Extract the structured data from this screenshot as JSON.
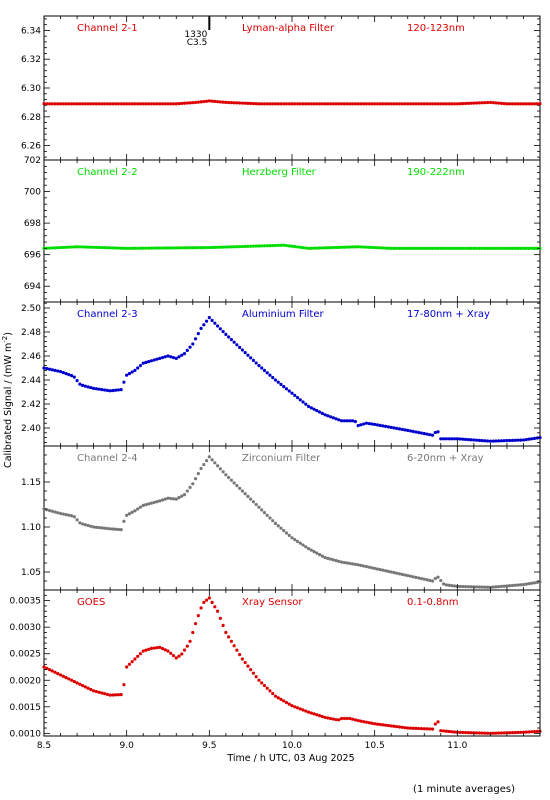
{
  "chart_data": {
    "type": "scatter",
    "xlabel": "Time / h UTC, 03 Aug 2025",
    "ylabel": "Calibrated Signal / (mW m",
    "ylabel_sup": "-2",
    "ylabel_close": ")",
    "footer": "(1 minute averages)",
    "xlim": [
      8.5,
      11.5
    ],
    "xticks": [
      "8.5",
      "9.0",
      "9.5",
      "10.0",
      "10.5",
      "11.0"
    ],
    "xtick_values": [
      8.5,
      9.0,
      9.5,
      10.0,
      10.5,
      11.0
    ],
    "marker_time": 9.5,
    "marker_label_top": "1330",
    "marker_label_bottom": "C3.5",
    "panels": [
      {
        "channel": "Channel 2-1",
        "filter": "Lyman-alpha Filter",
        "band": "120-123nm",
        "color": "#dd0000",
        "ylim": [
          6.25,
          6.35
        ],
        "yticks": [
          "6.26",
          "6.28",
          "6.30",
          "6.32",
          "6.34"
        ],
        "ytick_values": [
          6.26,
          6.28,
          6.3,
          6.32,
          6.34
        ],
        "points": [
          [
            8.5,
            6.289
          ],
          [
            9.3,
            6.289
          ],
          [
            9.42,
            6.29
          ],
          [
            9.5,
            6.291
          ],
          [
            9.6,
            6.29
          ],
          [
            9.8,
            6.289
          ],
          [
            11.0,
            6.289
          ],
          [
            11.2,
            6.29
          ],
          [
            11.3,
            6.289
          ],
          [
            11.5,
            6.289
          ]
        ]
      },
      {
        "channel": "Channel 2-2",
        "filter": "Herzberg Filter",
        "band": "190-222nm",
        "color": "#00dd00",
        "ylim": [
          693.0,
          702.0
        ],
        "yticks": [
          "694",
          "696",
          "698",
          "700",
          "702"
        ],
        "ytick_values": [
          694,
          696,
          698,
          700,
          702
        ],
        "points": [
          [
            8.5,
            696.4
          ],
          [
            8.7,
            696.5
          ],
          [
            9.0,
            696.4
          ],
          [
            9.5,
            696.45
          ],
          [
            9.95,
            696.6
          ],
          [
            10.1,
            696.4
          ],
          [
            10.4,
            696.5
          ],
          [
            10.6,
            696.4
          ],
          [
            11.5,
            696.4
          ]
        ]
      },
      {
        "channel": "Channel 2-3",
        "filter": "Aluminium Filter",
        "band": "17-80nm + Xray",
        "color": "#0000cc",
        "ylim": [
          2.385,
          2.505
        ],
        "yticks": [
          "2.40",
          "2.42",
          "2.44",
          "2.46",
          "2.48",
          "2.50"
        ],
        "ytick_values": [
          2.4,
          2.42,
          2.44,
          2.46,
          2.48,
          2.5
        ],
        "points": [
          [
            8.5,
            2.45
          ],
          [
            8.6,
            2.447
          ],
          [
            8.68,
            2.443
          ],
          [
            8.72,
            2.436
          ],
          [
            8.8,
            2.433
          ],
          [
            8.9,
            2.431
          ],
          [
            8.97,
            2.432
          ],
          [
            8.98,
            2.437
          ],
          [
            9.0,
            2.444
          ],
          [
            9.05,
            2.448
          ],
          [
            9.1,
            2.454
          ],
          [
            9.2,
            2.458
          ],
          [
            9.25,
            2.46
          ],
          [
            9.3,
            2.458
          ],
          [
            9.35,
            2.462
          ],
          [
            9.4,
            2.47
          ],
          [
            9.45,
            2.483
          ],
          [
            9.5,
            2.492
          ],
          [
            9.55,
            2.485
          ],
          [
            9.6,
            2.478
          ],
          [
            9.7,
            2.465
          ],
          [
            9.8,
            2.452
          ],
          [
            9.9,
            2.44
          ],
          [
            10.0,
            2.429
          ],
          [
            10.1,
            2.418
          ],
          [
            10.2,
            2.411
          ],
          [
            10.3,
            2.406
          ],
          [
            10.38,
            2.406
          ],
          [
            10.4,
            2.402
          ],
          [
            10.45,
            2.404
          ],
          [
            10.5,
            2.403
          ],
          [
            10.7,
            2.398
          ],
          [
            10.85,
            2.394
          ],
          [
            10.88,
            2.398
          ],
          [
            10.9,
            2.391
          ],
          [
            11.0,
            2.391
          ],
          [
            11.2,
            2.389
          ],
          [
            11.4,
            2.39
          ],
          [
            11.5,
            2.392
          ]
        ]
      },
      {
        "channel": "Channel 2-4",
        "filter": "Zirconium Filter",
        "band": "6-20nm + Xray",
        "color": "#777777",
        "ylim": [
          1.03,
          1.19
        ],
        "yticks": [
          "1.05",
          "1.10",
          "1.15"
        ],
        "ytick_values": [
          1.05,
          1.1,
          1.15
        ],
        "points": [
          [
            8.5,
            1.12
          ],
          [
            8.6,
            1.115
          ],
          [
            8.68,
            1.112
          ],
          [
            8.72,
            1.104
          ],
          [
            8.8,
            1.1
          ],
          [
            8.9,
            1.098
          ],
          [
            8.97,
            1.097
          ],
          [
            8.98,
            1.105
          ],
          [
            9.0,
            1.113
          ],
          [
            9.05,
            1.118
          ],
          [
            9.1,
            1.124
          ],
          [
            9.2,
            1.129
          ],
          [
            9.25,
            1.132
          ],
          [
            9.3,
            1.131
          ],
          [
            9.35,
            1.136
          ],
          [
            9.4,
            1.148
          ],
          [
            9.45,
            1.165
          ],
          [
            9.5,
            1.178
          ],
          [
            9.55,
            1.168
          ],
          [
            9.6,
            1.158
          ],
          [
            9.7,
            1.14
          ],
          [
            9.8,
            1.122
          ],
          [
            9.9,
            1.104
          ],
          [
            10.0,
            1.088
          ],
          [
            10.1,
            1.076
          ],
          [
            10.2,
            1.066
          ],
          [
            10.3,
            1.061
          ],
          [
            10.4,
            1.058
          ],
          [
            10.5,
            1.054
          ],
          [
            10.7,
            1.046
          ],
          [
            10.85,
            1.04
          ],
          [
            10.88,
            1.045
          ],
          [
            10.92,
            1.036
          ],
          [
            11.0,
            1.034
          ],
          [
            11.2,
            1.033
          ],
          [
            11.4,
            1.036
          ],
          [
            11.5,
            1.039
          ]
        ]
      },
      {
        "channel": "GOES",
        "filter": "Xray Sensor",
        "band": "0.1-0.8nm",
        "color": "#dd0000",
        "ylim": [
          0.00095,
          0.0037
        ],
        "yticks": [
          "0.0010",
          "0.0015",
          "0.0020",
          "0.0025",
          "0.0030",
          "0.0035"
        ],
        "ytick_values": [
          0.001,
          0.0015,
          0.002,
          0.0025,
          0.003,
          0.0035
        ],
        "points": [
          [
            8.5,
            0.00225
          ],
          [
            8.6,
            0.0021
          ],
          [
            8.7,
            0.00195
          ],
          [
            8.8,
            0.0018
          ],
          [
            8.9,
            0.00172
          ],
          [
            8.97,
            0.00173
          ],
          [
            8.98,
            0.00185
          ],
          [
            9.0,
            0.00225
          ],
          [
            9.05,
            0.0024
          ],
          [
            9.1,
            0.00255
          ],
          [
            9.15,
            0.0026
          ],
          [
            9.2,
            0.00262
          ],
          [
            9.25,
            0.00255
          ],
          [
            9.3,
            0.00242
          ],
          [
            9.33,
            0.00248
          ],
          [
            9.38,
            0.0027
          ],
          [
            9.42,
            0.0031
          ],
          [
            9.46,
            0.00345
          ],
          [
            9.5,
            0.00355
          ],
          [
            9.55,
            0.0033
          ],
          [
            9.6,
            0.0029
          ],
          [
            9.7,
            0.0024
          ],
          [
            9.8,
            0.002
          ],
          [
            9.9,
            0.0017
          ],
          [
            10.0,
            0.00152
          ],
          [
            10.1,
            0.0014
          ],
          [
            10.2,
            0.0013
          ],
          [
            10.28,
            0.00125
          ],
          [
            10.3,
            0.00128
          ],
          [
            10.35,
            0.00128
          ],
          [
            10.4,
            0.00124
          ],
          [
            10.5,
            0.00118
          ],
          [
            10.7,
            0.0011
          ],
          [
            10.85,
            0.00108
          ],
          [
            10.88,
            0.00125
          ],
          [
            10.9,
            0.00105
          ],
          [
            11.0,
            0.00102
          ],
          [
            11.2,
            0.001
          ],
          [
            11.4,
            0.00102
          ],
          [
            11.5,
            0.00104
          ]
        ]
      }
    ]
  }
}
